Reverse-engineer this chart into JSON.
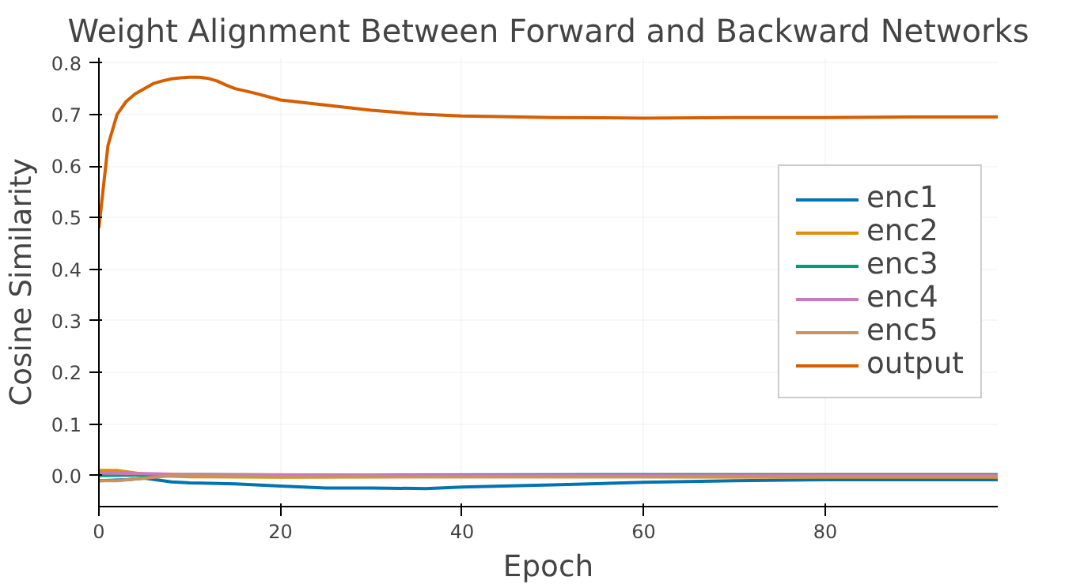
{
  "chart_data": {
    "type": "line",
    "title": "Weight Alignment Between Forward and Backward Networks",
    "xlabel": "Epoch",
    "ylabel": "Cosine Similarity",
    "xlim": [
      0,
      99
    ],
    "ylim": [
      -0.06,
      0.81
    ],
    "xticks": [
      0,
      20,
      40,
      60,
      80
    ],
    "yticks": [
      {
        "value": 0,
        "label": "0.0"
      },
      0.1,
      0.2,
      0.3,
      0.4,
      0.5,
      0.6,
      0.7,
      0.8
    ],
    "grid": true,
    "legend": "right",
    "line_style": "solid",
    "series": [
      {
        "name": "enc1",
        "color": "#0173b2",
        "x": [
          0,
          3,
          5,
          8,
          10,
          15,
          20,
          25,
          30,
          36,
          40,
          50,
          60,
          70,
          80,
          99
        ],
        "values": [
          -0.01,
          -0.008,
          -0.005,
          -0.012,
          -0.014,
          -0.016,
          -0.02,
          -0.024,
          -0.024,
          -0.025,
          -0.022,
          -0.018,
          -0.013,
          -0.01,
          -0.008,
          -0.008
        ]
      },
      {
        "name": "enc2",
        "color": "#de8f05",
        "x": [
          0,
          2,
          4,
          6,
          10,
          20,
          40,
          60,
          80,
          99
        ],
        "values": [
          0.01,
          0.01,
          0.005,
          0.0,
          -0.002,
          -0.003,
          -0.002,
          -0.002,
          -0.003,
          -0.003
        ]
      },
      {
        "name": "enc3",
        "color": "#029e73",
        "x": [
          0,
          10,
          30,
          60,
          99
        ],
        "values": [
          0.0,
          0.002,
          0.001,
          0.002,
          0.002
        ]
      },
      {
        "name": "enc4",
        "color": "#cc78bc",
        "x": [
          0,
          5,
          10,
          30,
          60,
          99
        ],
        "values": [
          0.005,
          0.004,
          0.002,
          0.0,
          0.0,
          0.0
        ]
      },
      {
        "name": "enc5",
        "color": "#ca9161",
        "x": [
          0,
          2,
          5,
          8,
          20,
          50,
          99
        ],
        "values": [
          -0.01,
          -0.01,
          -0.005,
          0.0,
          -0.002,
          -0.002,
          -0.002
        ]
      },
      {
        "name": "output",
        "color": "#d55e00",
        "x": [
          0,
          1,
          2,
          3,
          4,
          5,
          6,
          7,
          8,
          9,
          10,
          11,
          12,
          13,
          14,
          15,
          17,
          20,
          25,
          30,
          35,
          40,
          50,
          60,
          70,
          80,
          90,
          99
        ],
        "values": [
          0.48,
          0.64,
          0.7,
          0.725,
          0.74,
          0.75,
          0.76,
          0.765,
          0.769,
          0.771,
          0.772,
          0.772,
          0.77,
          0.765,
          0.757,
          0.75,
          0.742,
          0.728,
          0.718,
          0.708,
          0.701,
          0.697,
          0.694,
          0.693,
          0.694,
          0.694,
          0.695,
          0.695
        ]
      }
    ]
  }
}
